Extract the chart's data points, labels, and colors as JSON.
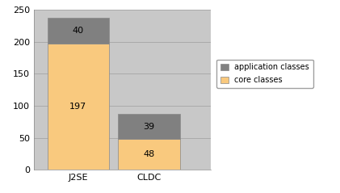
{
  "categories": [
    "J2SE",
    "CLDC"
  ],
  "core_classes": [
    197,
    48
  ],
  "app_classes": [
    40,
    39
  ],
  "core_color": "#f9c97e",
  "app_color": "#808080",
  "plot_bg_color": "#c8c8c8",
  "figure_bg_color": "#ffffff",
  "legend_bg": "#ffffff",
  "ylim": [
    0,
    250
  ],
  "yticks": [
    0,
    50,
    100,
    150,
    200,
    250
  ],
  "bar_width": 0.35,
  "gridline_color": "#aaaaaa"
}
